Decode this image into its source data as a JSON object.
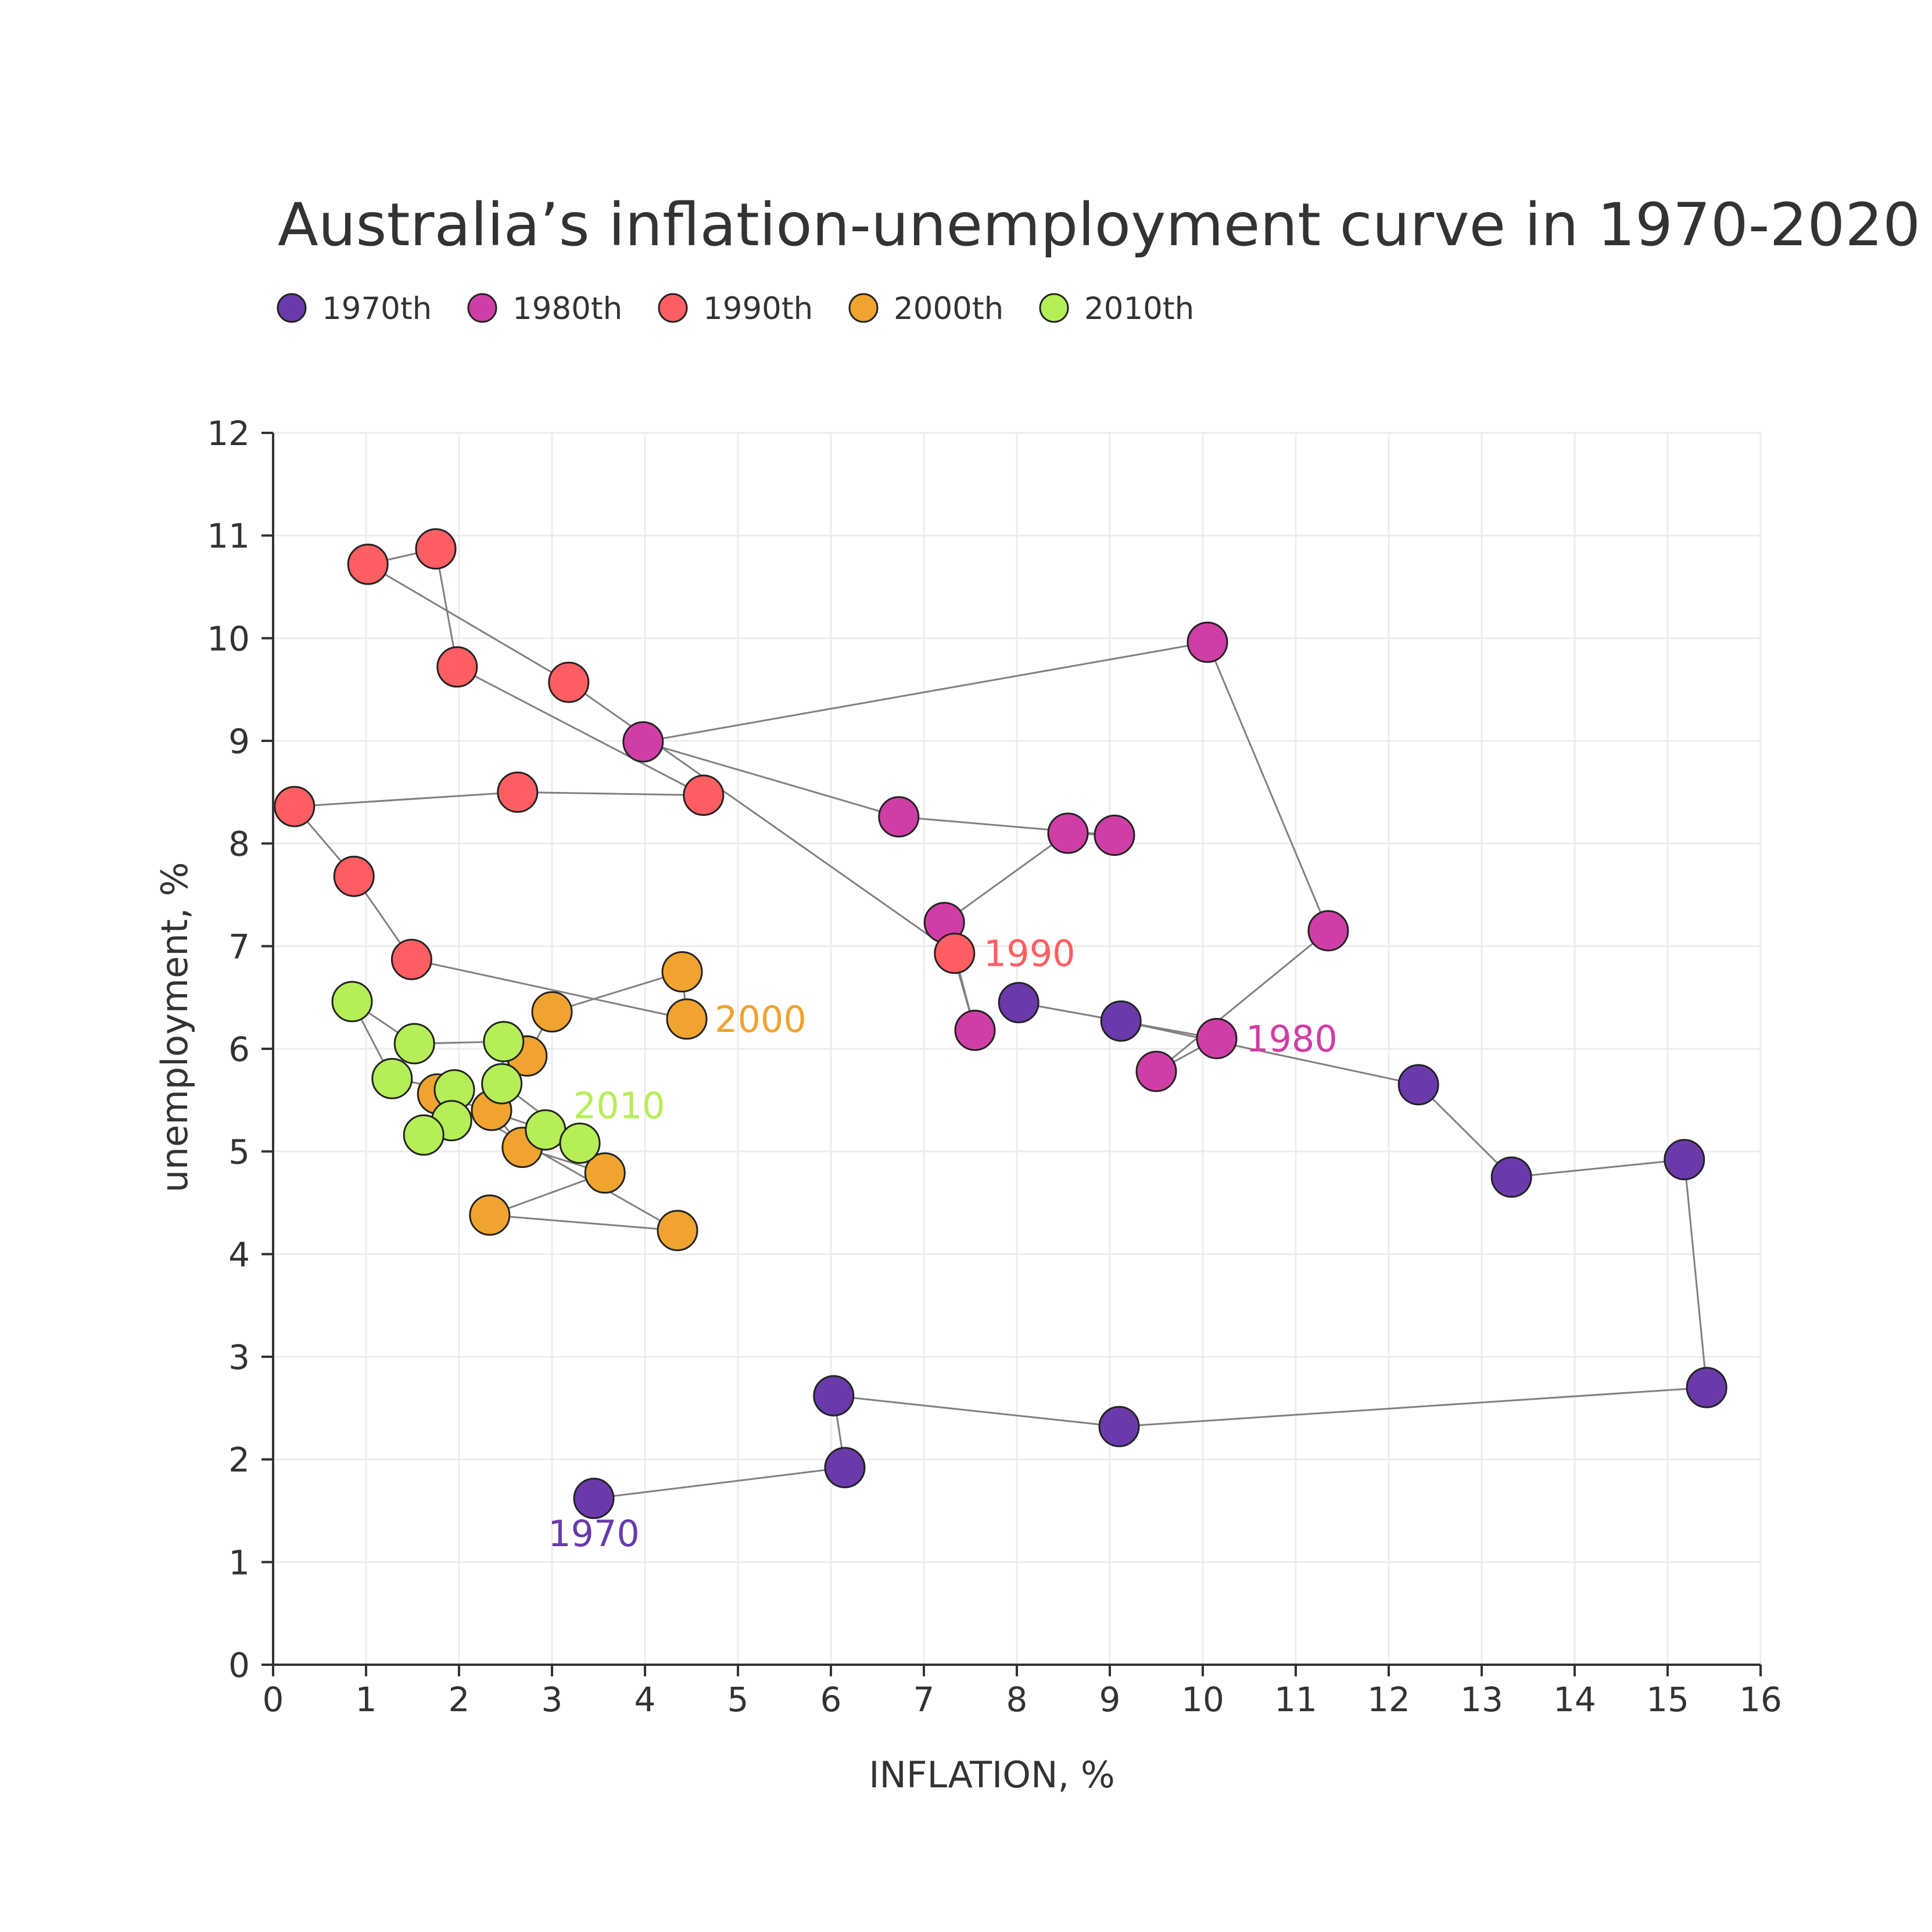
{
  "chart_data": {
    "type": "scatter",
    "title": "Australia’s inflation-unemployment curve in 1970-2020",
    "xlabel": "INFLATION, %",
    "ylabel": "unemployment, %",
    "xlim": [
      0,
      16
    ],
    "ylim": [
      0,
      12
    ],
    "xticks": [
      "0",
      "1",
      "2",
      "3",
      "4",
      "5",
      "6",
      "7",
      "8",
      "9",
      "10",
      "11",
      "12",
      "13",
      "14",
      "15",
      "16"
    ],
    "yticks": [
      "0",
      "1",
      "2",
      "3",
      "4",
      "5",
      "6",
      "7",
      "8",
      "9",
      "10",
      "11",
      "12"
    ],
    "grid": true,
    "legend_position": "top-left",
    "connected": true,
    "series": [
      {
        "name": "1970th",
        "color": "#6a3aab",
        "annotation": "1970",
        "points": [
          [
            3.45,
            1.62
          ],
          [
            6.15,
            1.92
          ],
          [
            6.03,
            2.62
          ],
          [
            9.1,
            2.32
          ],
          [
            15.42,
            2.7
          ],
          [
            15.18,
            4.92
          ],
          [
            13.32,
            4.75
          ],
          [
            12.32,
            5.65
          ],
          [
            9.12,
            6.27
          ],
          [
            8.02,
            6.45
          ]
        ]
      },
      {
        "name": "1980th",
        "color": "#cf3ea5",
        "annotation": "1980",
        "points": [
          [
            10.15,
            6.1
          ],
          [
            9.5,
            5.78
          ],
          [
            11.35,
            7.15
          ],
          [
            10.05,
            9.96
          ],
          [
            3.98,
            8.99
          ],
          [
            6.73,
            8.26
          ],
          [
            9.05,
            8.08
          ],
          [
            8.55,
            8.1
          ],
          [
            7.22,
            7.23
          ],
          [
            7.55,
            6.18
          ]
        ]
      },
      {
        "name": "1990th",
        "color": "#ff5e62",
        "annotation": "1990",
        "points": [
          [
            7.33,
            6.93
          ],
          [
            3.18,
            9.57
          ],
          [
            1.02,
            10.72
          ],
          [
            1.75,
            10.87
          ],
          [
            1.98,
            9.72
          ],
          [
            4.63,
            8.47
          ],
          [
            2.63,
            8.5
          ],
          [
            0.23,
            8.36
          ],
          [
            0.87,
            7.68
          ],
          [
            1.49,
            6.87
          ]
        ]
      },
      {
        "name": "2000th",
        "color": "#f0a32f",
        "annotation": "2000",
        "points": [
          [
            4.45,
            6.29
          ],
          [
            4.4,
            6.75
          ],
          [
            3.0,
            6.36
          ],
          [
            2.73,
            5.93
          ],
          [
            2.35,
            5.4
          ],
          [
            2.68,
            5.04
          ],
          [
            3.57,
            4.79
          ],
          [
            2.33,
            4.38
          ],
          [
            4.35,
            4.23
          ],
          [
            1.77,
            5.56
          ]
        ]
      },
      {
        "name": "2010th",
        "color": "#b5ee56",
        "annotation": "2010",
        "points": [
          [
            2.93,
            5.21
          ],
          [
            3.3,
            5.08
          ],
          [
            2.46,
            5.66
          ],
          [
            2.48,
            6.07
          ],
          [
            1.52,
            6.05
          ],
          [
            0.85,
            6.46
          ],
          [
            1.28,
            5.71
          ],
          [
            1.95,
            5.6
          ],
          [
            1.92,
            5.3
          ],
          [
            1.62,
            5.16
          ]
        ]
      }
    ]
  }
}
